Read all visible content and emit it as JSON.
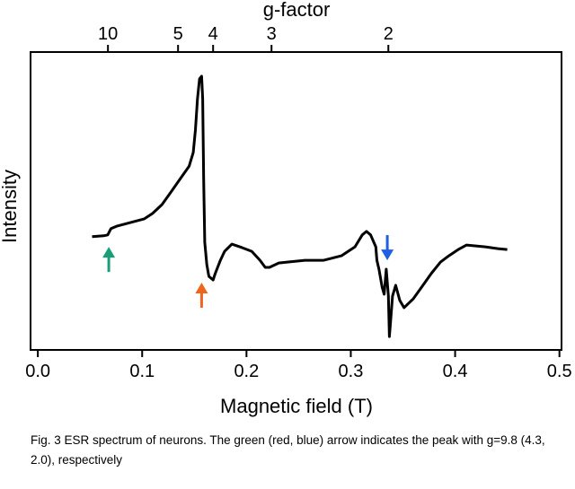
{
  "chart_data": {
    "type": "line",
    "x_label": "Magnetic field (T)",
    "y_label": "Intensity",
    "x2_label": "g-factor",
    "caption": "Fig. 3 ESR spectrum of neurons. The green (red, blue) arrow indicates the peak with g=9.8 (4.3, 2.0), respectively",
    "xlim": [
      -0.007,
      0.502
    ],
    "ylim": [
      0,
      100
    ],
    "xticks": [
      {
        "value": 0,
        "label": "0.0"
      },
      0.1,
      0.2,
      0.3,
      0.4,
      0.5
    ],
    "x2ticks": [
      {
        "value": 0.0672,
        "label": "10"
      },
      {
        "value": 0.1344,
        "label": "5"
      },
      {
        "value": 0.168,
        "label": "4"
      },
      {
        "value": 0.224,
        "label": "3"
      },
      {
        "value": 0.336,
        "label": "2"
      }
    ],
    "x": [
      0.052,
      0.063,
      0.067,
      0.07,
      0.076,
      0.089,
      0.102,
      0.11,
      0.119,
      0.127,
      0.136,
      0.145,
      0.149,
      0.151,
      0.153,
      0.155,
      0.157,
      0.158,
      0.159,
      0.16,
      0.162,
      0.164,
      0.168,
      0.17,
      0.175,
      0.179,
      0.186,
      0.196,
      0.205,
      0.213,
      0.218,
      0.222,
      0.231,
      0.239,
      0.256,
      0.274,
      0.291,
      0.304,
      0.311,
      0.315,
      0.319,
      0.324,
      0.325,
      0.327,
      0.33,
      0.332,
      0.334,
      0.336,
      0.337,
      0.338,
      0.34,
      0.343,
      0.347,
      0.351,
      0.36,
      0.368,
      0.377,
      0.386,
      0.394,
      0.403,
      0.411,
      0.429,
      0.441,
      0.45
    ],
    "series": [
      {
        "color": "#000000",
        "values": [
          38.0,
          38.3,
          38.6,
          40.7,
          41.6,
          42.8,
          44.0,
          45.8,
          48.8,
          52.7,
          57.2,
          61.7,
          66.3,
          73.8,
          84.3,
          91.0,
          91.9,
          84.3,
          57.2,
          36.1,
          28.6,
          24.7,
          23.5,
          25.6,
          30.1,
          33.1,
          35.5,
          34.3,
          33.1,
          30.1,
          27.7,
          27.7,
          29.2,
          29.5,
          30.1,
          30.1,
          31.6,
          34.6,
          38.6,
          39.8,
          38.6,
          34.6,
          30.1,
          27.1,
          21.1,
          18.7,
          27.1,
          18.1,
          4.5,
          9.0,
          18.1,
          21.7,
          16.6,
          14.2,
          17.2,
          21.1,
          25.6,
          29.5,
          31.6,
          33.7,
          35.2,
          34.6,
          34.0,
          33.7
        ]
      }
    ],
    "arrows": [
      {
        "x": 0.068,
        "y": 34.6,
        "color": "#1a9e77",
        "direction": "up"
      },
      {
        "x": 0.157,
        "y": 22.6,
        "color": "#f0641e",
        "direction": "up"
      },
      {
        "x": 0.335,
        "y": 30.1,
        "color": "#1f5fe0",
        "direction": "down"
      }
    ]
  }
}
